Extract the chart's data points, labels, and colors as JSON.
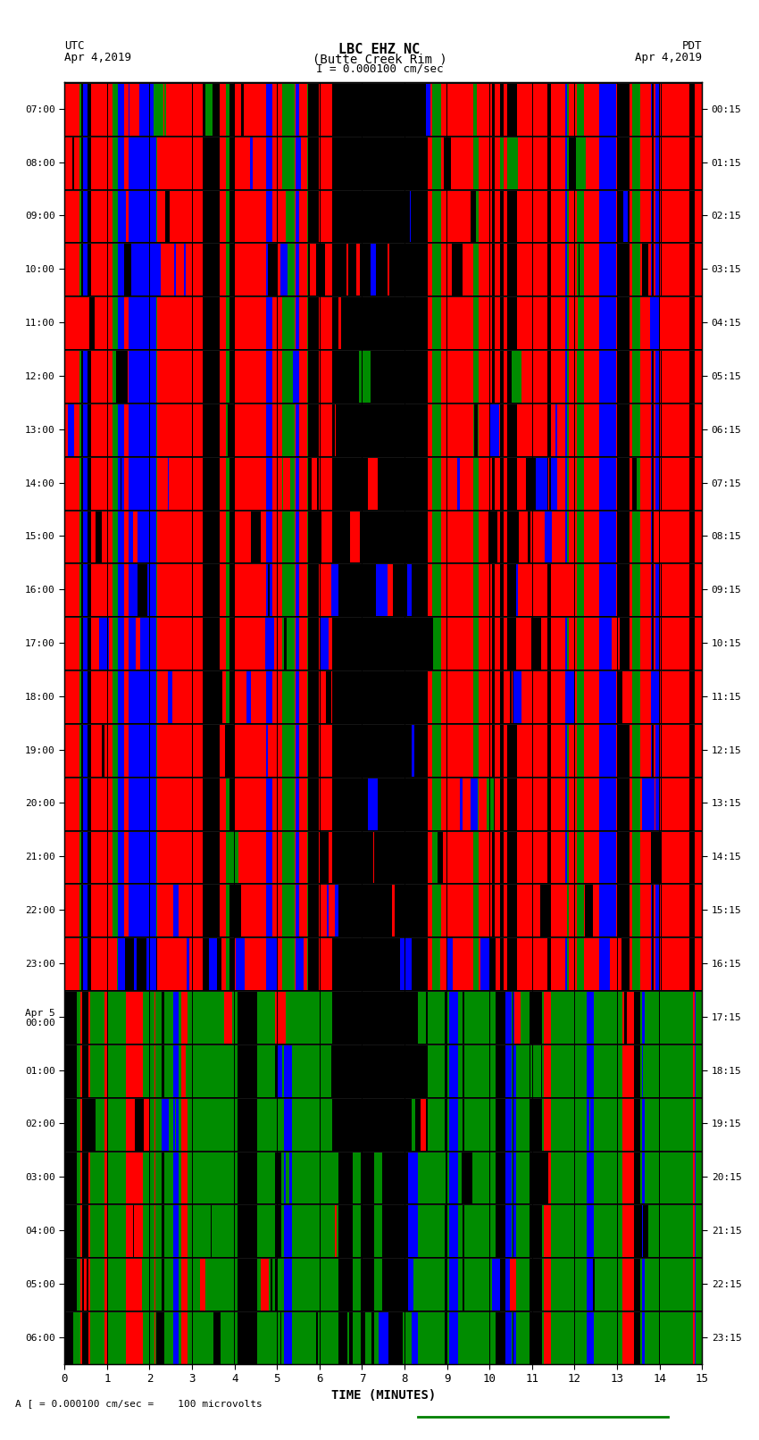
{
  "title_line1": "LBC EHZ NC",
  "title_line2": "(Butte Creek Rim )",
  "title_scale": "I = 0.000100 cm/sec",
  "left_label_top": "UTC",
  "left_label_date": "Apr 4,2019",
  "right_label_top": "PDT",
  "right_label_date": "Apr 4,2019",
  "xlabel": "TIME (MINUTES)",
  "bottom_note": "A [ = 0.000100 cm/sec =    100 microvolts",
  "fig_width": 8.5,
  "fig_height": 16.13,
  "dpi": 100,
  "fig_bg": "#ffffff",
  "left_yticks": [
    "07:00",
    "08:00",
    "09:00",
    "10:00",
    "11:00",
    "12:00",
    "13:00",
    "14:00",
    "15:00",
    "16:00",
    "17:00",
    "18:00",
    "19:00",
    "20:00",
    "21:00",
    "22:00",
    "23:00",
    "Apr 5\n00:00",
    "01:00",
    "02:00",
    "03:00",
    "04:00",
    "05:00",
    "06:00"
  ],
  "right_yticks": [
    "00:15",
    "01:15",
    "02:15",
    "03:15",
    "04:15",
    "05:15",
    "06:15",
    "07:15",
    "08:15",
    "09:15",
    "10:15",
    "11:15",
    "12:15",
    "13:15",
    "14:15",
    "15:15",
    "16:15",
    "17:15",
    "18:15",
    "19:15",
    "20:15",
    "21:15",
    "22:15",
    "23:15"
  ],
  "xticks": [
    0,
    1,
    2,
    3,
    4,
    5,
    6,
    7,
    8,
    9,
    10,
    11,
    12,
    13,
    14,
    15
  ],
  "num_rows": 24,
  "num_cols": 750,
  "seed": 12345
}
